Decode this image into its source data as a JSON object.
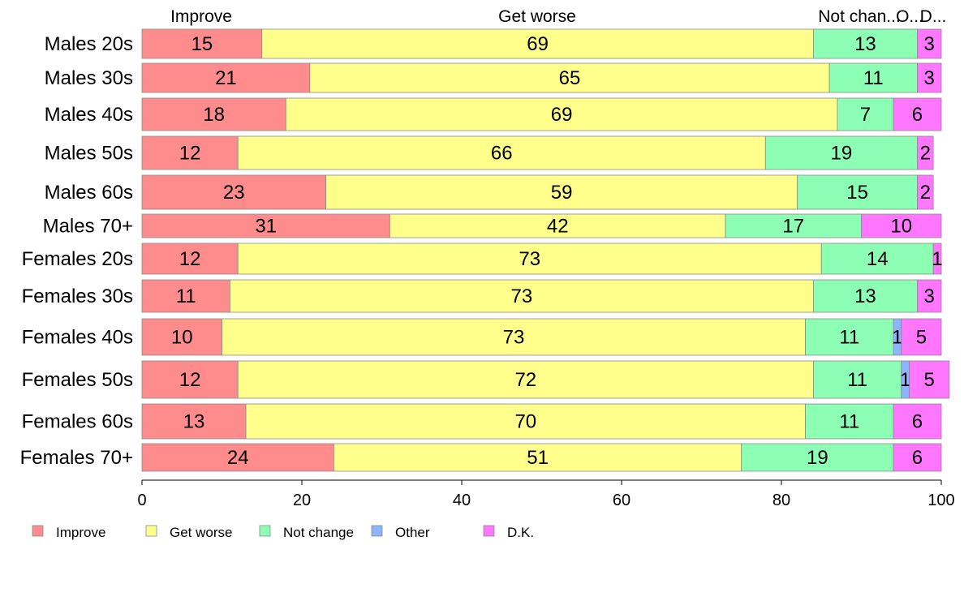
{
  "chart_data": {
    "type": "bar",
    "orientation": "horizontal",
    "stacked": true,
    "categories": [
      "Males 20s",
      "Males 30s",
      "Males 40s",
      "Males 50s",
      "Males 60s",
      "Males 70+",
      "Females 20s",
      "Females 30s",
      "Females 40s",
      "Females 50s",
      "Females 60s",
      "Females 70+"
    ],
    "series": [
      {
        "name": "Improve",
        "color": "#ff8c8c",
        "values": [
          15,
          21,
          18,
          12,
          23,
          31,
          12,
          11,
          10,
          12,
          13,
          24
        ]
      },
      {
        "name": "Get worse",
        "color": "#ffff8c",
        "values": [
          69,
          65,
          69,
          66,
          59,
          42,
          73,
          73,
          73,
          72,
          70,
          51
        ]
      },
      {
        "name": "Not change",
        "color": "#8cffb4",
        "values": [
          13,
          11,
          7,
          19,
          15,
          17,
          14,
          13,
          11,
          11,
          11,
          19
        ]
      },
      {
        "name": "Other",
        "color": "#8cb4ff",
        "values": [
          0,
          0,
          0,
          0,
          0,
          0,
          0,
          0,
          1,
          1,
          0,
          0
        ]
      },
      {
        "name": "D.K.",
        "color": "#ff77ff",
        "values": [
          3,
          3,
          6,
          2,
          2,
          10,
          1,
          3,
          5,
          5,
          6,
          6
        ]
      }
    ],
    "column_header_labels": [
      "Improve",
      "Get worse",
      "Not chan...",
      "O...",
      "D..."
    ],
    "xlim": [
      0,
      100
    ],
    "xticks": [
      0,
      20,
      40,
      60,
      80,
      100
    ],
    "title": "",
    "xlabel": "",
    "ylabel": "",
    "grid": false,
    "legend_position": "bottom-left"
  }
}
